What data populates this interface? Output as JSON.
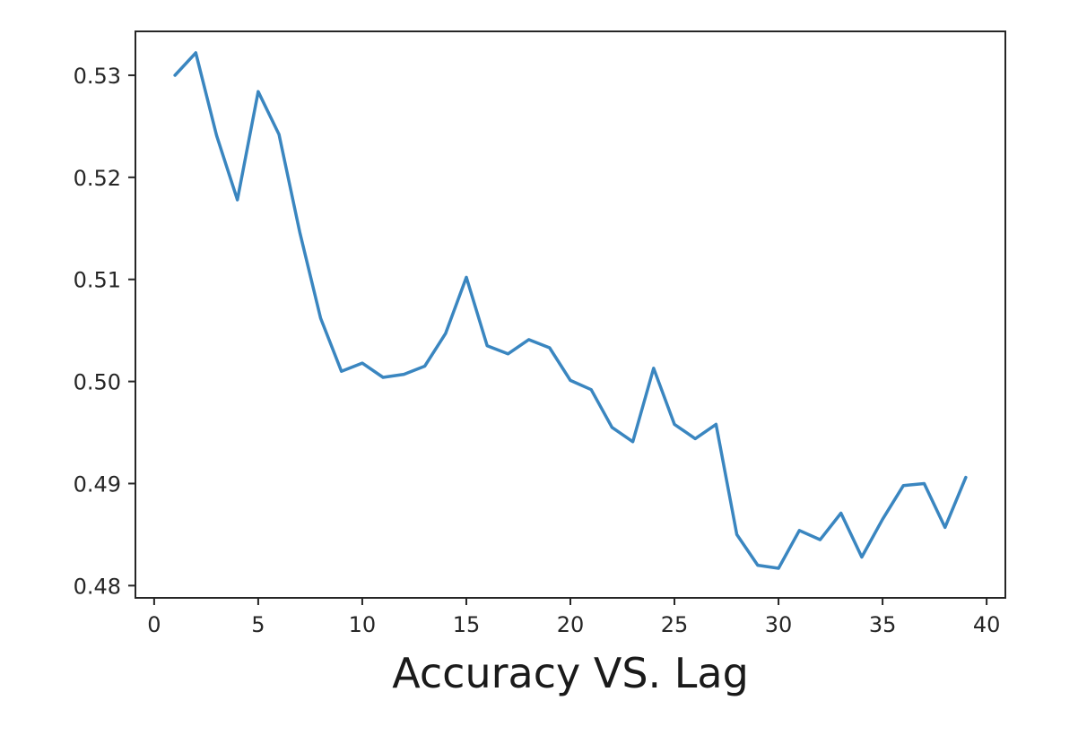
{
  "chart_data": {
    "type": "line",
    "title": "",
    "xlabel": "Accuracy VS. Lag",
    "ylabel": "",
    "xlim": [
      -0.9,
      40.9
    ],
    "ylim": [
      0.4788,
      0.5343
    ],
    "xticks": [
      0,
      5,
      10,
      15,
      20,
      25,
      30,
      35,
      40
    ],
    "xtick_labels": [
      "0",
      "5",
      "10",
      "15",
      "20",
      "25",
      "30",
      "35",
      "40"
    ],
    "yticks": [
      0.48,
      0.49,
      0.5,
      0.51,
      0.52,
      0.53
    ],
    "ytick_labels": [
      "0.48",
      "0.49",
      "0.50",
      "0.51",
      "0.52",
      "0.53"
    ],
    "grid": false,
    "series": [
      {
        "color": "#3a86c0",
        "x": [
          1,
          2,
          3,
          4,
          5,
          6,
          7,
          8,
          9,
          10,
          11,
          12,
          13,
          14,
          15,
          16,
          17,
          18,
          19,
          20,
          21,
          22,
          23,
          24,
          25,
          26,
          27,
          28,
          29,
          30,
          31,
          32,
          33,
          34,
          35,
          36,
          37,
          38,
          39
        ],
        "y": [
          0.53,
          0.5322,
          0.5241,
          0.5178,
          0.5284,
          0.5242,
          0.5146,
          0.5062,
          0.501,
          0.5018,
          0.5004,
          0.5007,
          0.5015,
          0.5047,
          0.5102,
          0.5035,
          0.5027,
          0.5041,
          0.5033,
          0.5001,
          0.4992,
          0.4955,
          0.4941,
          0.5013,
          0.4958,
          0.4944,
          0.4958,
          0.485,
          0.482,
          0.4817,
          0.4854,
          0.4845,
          0.4871,
          0.4828,
          0.4865,
          0.4898,
          0.49,
          0.4857,
          0.4906
        ]
      }
    ]
  }
}
